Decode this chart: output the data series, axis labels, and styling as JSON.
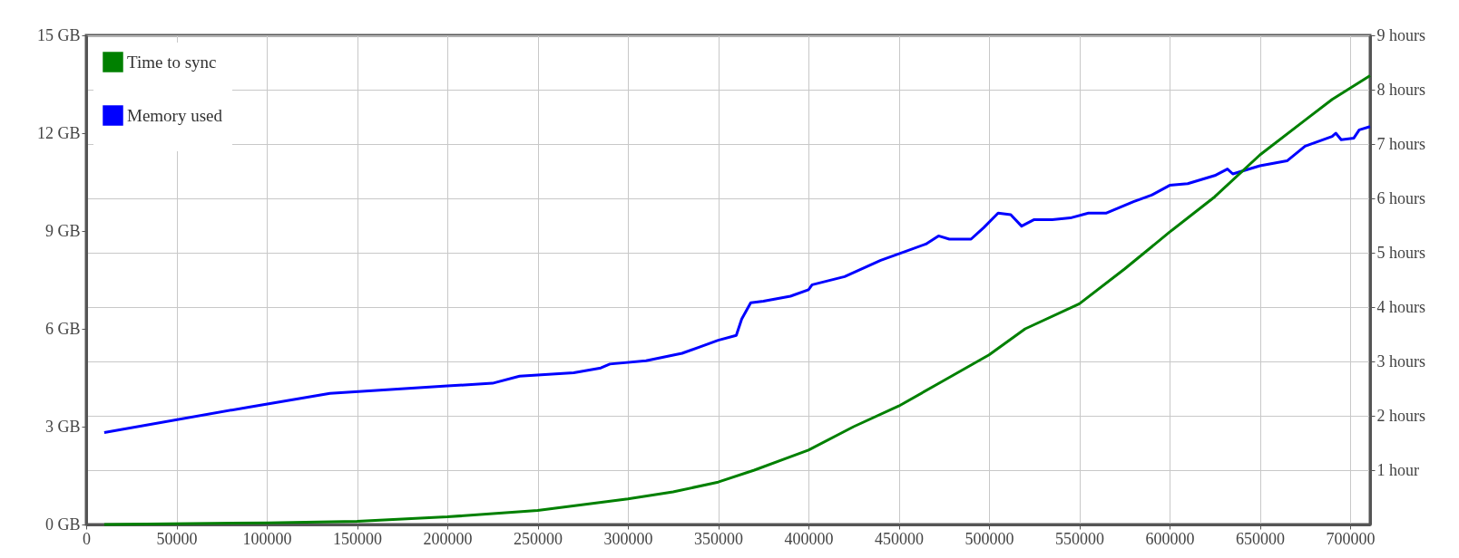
{
  "chart_data": {
    "type": "line",
    "xlim": [
      0,
      711000
    ],
    "xticks": [
      0,
      50000,
      100000,
      150000,
      200000,
      250000,
      300000,
      350000,
      400000,
      450000,
      500000,
      550000,
      600000,
      650000,
      700000
    ],
    "ylim": [
      0,
      15
    ],
    "yticks": [
      {
        "value": 0,
        "label": "0 GB"
      },
      {
        "value": 3,
        "label": "3 GB"
      },
      {
        "value": 6,
        "label": "6 GB"
      },
      {
        "value": 9,
        "label": "9 GB"
      },
      {
        "value": 12,
        "label": "12 GB"
      },
      {
        "value": 15,
        "label": "15 GB"
      }
    ],
    "y2lim": [
      0,
      9
    ],
    "y2ticks": [
      {
        "value": 1,
        "label": "1 hour"
      },
      {
        "value": 2,
        "label": "2 hours"
      },
      {
        "value": 3,
        "label": "3 hours"
      },
      {
        "value": 4,
        "label": "4 hours"
      },
      {
        "value": 5,
        "label": "5 hours"
      },
      {
        "value": 6,
        "label": "6 hours"
      },
      {
        "value": 7,
        "label": "7 hours"
      },
      {
        "value": 8,
        "label": "8 hours"
      },
      {
        "value": 9,
        "label": "9 hours"
      }
    ],
    "grid": true,
    "legend": "top left",
    "marker": "none",
    "line_style": "solid",
    "series": [
      {
        "name": "Time to sync",
        "color": "#008000",
        "axis": "y2",
        "x": [
          10000,
          100000,
          150000,
          200000,
          250000,
          300000,
          325000,
          350000,
          370000,
          400000,
          425000,
          450000,
          475000,
          500000,
          520000,
          550000,
          575000,
          600000,
          625000,
          650000,
          675000,
          690000,
          711000
        ],
        "values": [
          0.0,
          0.03,
          0.06,
          0.14,
          0.26,
          0.47,
          0.6,
          0.78,
          1.0,
          1.37,
          1.8,
          2.18,
          2.65,
          3.12,
          3.6,
          4.06,
          4.7,
          5.38,
          6.03,
          6.8,
          7.44,
          7.82,
          8.26
        ]
      },
      {
        "name": "Memory used",
        "color": "#0000ff",
        "x": [
          10000,
          90000,
          135000,
          200000,
          225000,
          240000,
          270000,
          285000,
          290000,
          310000,
          330000,
          340000,
          350000,
          360000,
          363000,
          368000,
          375000,
          390000,
          400000,
          402000,
          420000,
          440000,
          455000,
          465000,
          472000,
          478000,
          490000,
          497000,
          505000,
          512000,
          518000,
          525000,
          535000,
          545000,
          555000,
          565000,
          580000,
          590000,
          600000,
          610000,
          625000,
          632000,
          635000,
          650000,
          665000,
          675000,
          690000,
          692000,
          695000,
          702000,
          705000,
          711000
        ],
        "values": [
          2.82,
          3.6,
          4.02,
          4.25,
          4.33,
          4.55,
          4.65,
          4.8,
          4.92,
          5.02,
          5.25,
          5.45,
          5.65,
          5.8,
          6.3,
          6.8,
          6.85,
          7.0,
          7.2,
          7.35,
          7.6,
          8.1,
          8.4,
          8.6,
          8.85,
          8.75,
          8.75,
          9.1,
          9.55,
          9.5,
          9.15,
          9.35,
          9.35,
          9.4,
          9.55,
          9.55,
          9.9,
          10.1,
          10.4,
          10.45,
          10.7,
          10.9,
          10.75,
          11.0,
          11.15,
          11.6,
          11.9,
          12.0,
          11.8,
          11.85,
          12.1,
          12.2
        ]
      }
    ]
  }
}
